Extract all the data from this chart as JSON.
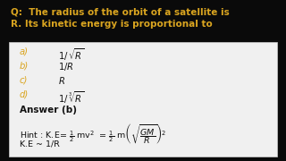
{
  "bg_color": "#0a0a0a",
  "white_box_color": "#f0f0f0",
  "question_color": "#DAA520",
  "option_label_color": "#DAA520",
  "option_text_color": "#111111",
  "answer_color": "#111111",
  "hint_color": "#111111",
  "question_text_line1": "Q:  The radius of the orbit of a satellite is",
  "question_text_line2": "R. Its kinetic energy is proportional to",
  "answer_line": "Answer (b)",
  "hint_line2": "K.E ~ 1/R",
  "figsize": [
    3.2,
    1.8
  ],
  "dpi": 100
}
